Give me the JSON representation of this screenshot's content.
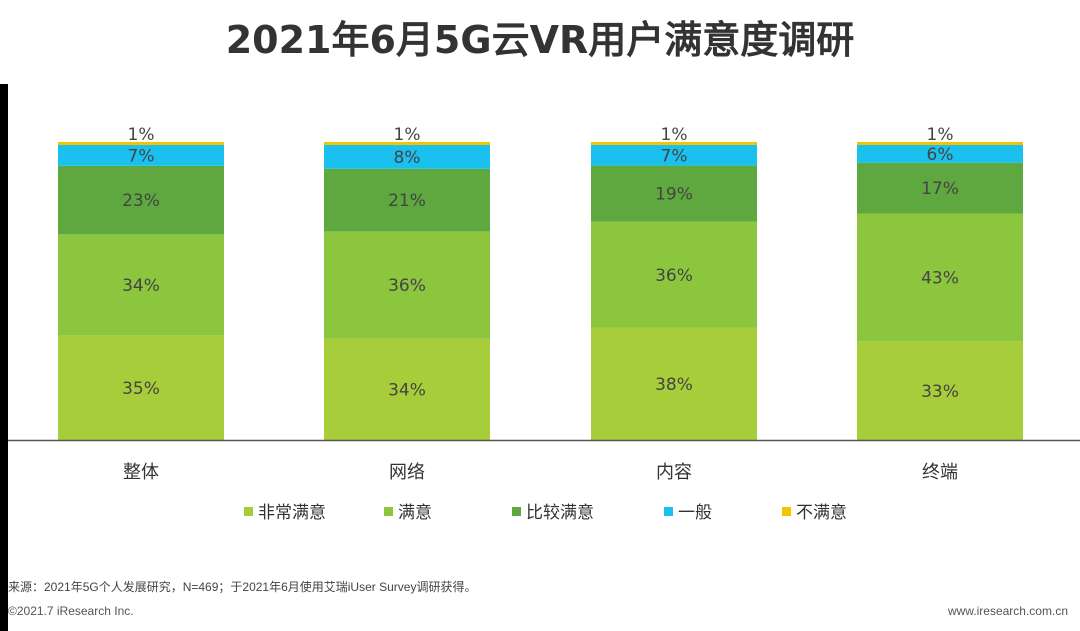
{
  "title": "2021年6月5G云VR用户满意度调研",
  "chart_data": {
    "type": "stacked-bar",
    "title": "2021年6月5G云VR用户满意度调研",
    "categories": [
      "整体",
      "网络",
      "内容",
      "终端"
    ],
    "series": [
      {
        "name": "非常满意",
        "color": "#a8cd3a",
        "values": [
          35,
          34,
          38,
          33
        ],
        "labels": [
          "35%",
          "34%",
          "38%",
          "33%"
        ]
      },
      {
        "name": "满意",
        "color": "#8cc63f",
        "values": [
          34,
          36,
          36,
          43
        ],
        "labels": [
          "34%",
          "36%",
          "36%",
          "43%"
        ]
      },
      {
        "name": "比较满意",
        "color": "#5ea83f",
        "values": [
          23,
          21,
          19,
          17
        ],
        "labels": [
          "23%",
          "21%",
          "19%",
          "17%"
        ]
      },
      {
        "name": "一般",
        "color": "#1ac0ee",
        "values": [
          7,
          8,
          7,
          6
        ],
        "labels": [
          "7%",
          "8%",
          "7%",
          "6%"
        ]
      },
      {
        "name": "不满意",
        "color": "#f5c400",
        "values": [
          1,
          1,
          1,
          1
        ],
        "labels": [
          "1%",
          "1%",
          "1%",
          "1%"
        ]
      }
    ],
    "ylim": [
      0,
      100
    ],
    "legend_position": "bottom"
  },
  "footer": {
    "source": "来源：2021年5G个人发展研究，N=469；于2021年6月使用艾瑞iUser Survey调研获得。",
    "copyright": "©2021.7 iResearch Inc.",
    "site": "www.iresearch.com.cn"
  }
}
